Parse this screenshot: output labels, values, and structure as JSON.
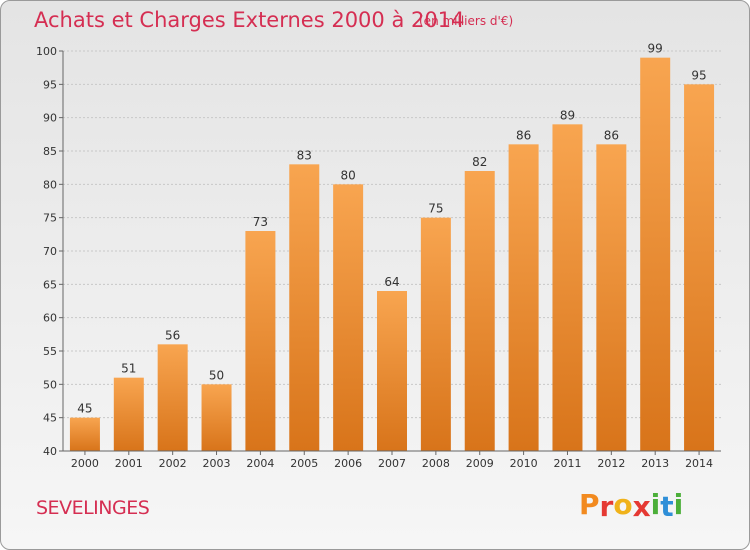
{
  "chart_data": {
    "type": "bar",
    "title": "Achats et Charges Externes 2000 à 2014",
    "subtitle": "(en milliers d'€)",
    "categories": [
      "2000",
      "2001",
      "2002",
      "2003",
      "2004",
      "2005",
      "2006",
      "2007",
      "2008",
      "2009",
      "2010",
      "2011",
      "2012",
      "2013",
      "2014"
    ],
    "values": [
      45,
      51,
      56,
      50,
      73,
      83,
      80,
      64,
      75,
      82,
      86,
      89,
      86,
      99,
      95
    ],
    "ylim": [
      40,
      100
    ],
    "yticks": [
      40,
      45,
      50,
      55,
      60,
      65,
      70,
      75,
      80,
      85,
      90,
      95,
      100
    ],
    "grid": true,
    "bar_color_top": "#f8a550",
    "bar_color_bottom": "#d8741a"
  },
  "footer": {
    "location": "SEVELINGES",
    "logo_letters": [
      "P",
      "r",
      "o",
      "x",
      "i",
      "t",
      "i"
    ],
    "logo_colors": [
      "#f28a1f",
      "#e53933",
      "#f0b21a",
      "#e53933",
      "#4caf3a",
      "#2f8fd8",
      "#4caf3a"
    ]
  }
}
